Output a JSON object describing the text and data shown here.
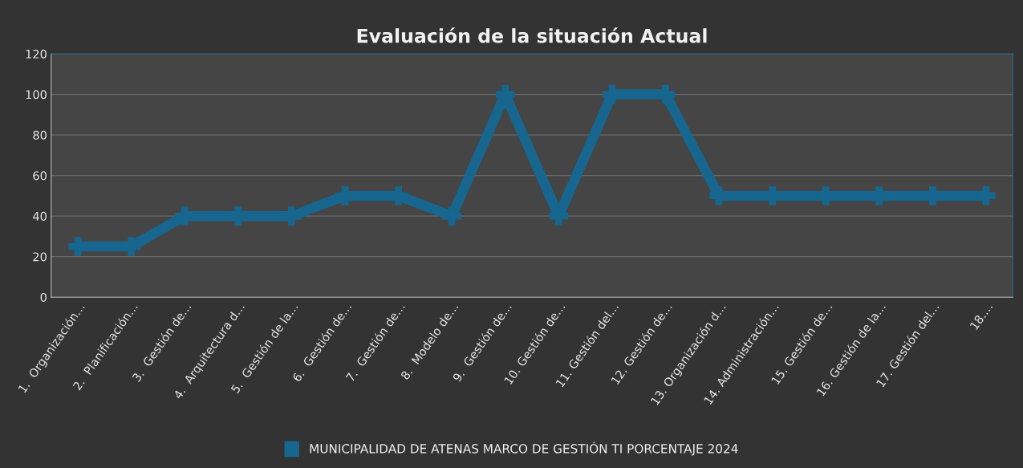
{
  "chart_data": {
    "type": "line",
    "title": "Evaluación de la situación Actual",
    "categories": [
      "1.  Organización…",
      "2.  Planificación…",
      "3.  Gestión de…",
      "4.  Arquitectura d…",
      "5.  Gestión de la…",
      "6.  Gestión de…",
      "7.  Gestión de…",
      "8.  Modelo de…",
      "9.  Gestión de…",
      "10. Gestión de…",
      "11. Gestión del…",
      "12. Gestión de…",
      "13. Organización d…",
      "14. Administración…",
      "15. Gestión de…",
      "16. Gestión de la…",
      "17. Gestión del…",
      "18.…"
    ],
    "series": [
      {
        "name": "MUNICIPALIDAD DE ATENAS MARCO DE GESTIÓN TI PORCENTAJE 2024",
        "color": "#17668f",
        "values": [
          25,
          25,
          40,
          40,
          40,
          50,
          50,
          40,
          100,
          40,
          100,
          100,
          50,
          50,
          50,
          50,
          50,
          50
        ]
      }
    ],
    "ylim": [
      0,
      120
    ],
    "yticks": [
      0,
      20,
      40,
      60,
      80,
      100,
      120
    ],
    "grid": "y",
    "legend": "bottom",
    "marker": "cross",
    "line_style": "solid"
  }
}
